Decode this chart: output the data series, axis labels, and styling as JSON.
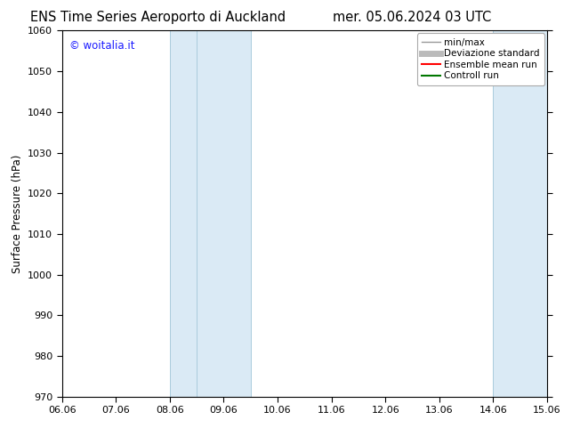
{
  "title_left": "ENS Time Series Aeroporto di Auckland",
  "title_right": "mer. 05.06.2024 03 UTC",
  "ylabel": "Surface Pressure (hPa)",
  "ylim": [
    970,
    1060
  ],
  "yticks": [
    970,
    980,
    990,
    1000,
    1010,
    1020,
    1030,
    1040,
    1050,
    1060
  ],
  "xlim": [
    0.0,
    9.0
  ],
  "xtick_labels": [
    "06.06",
    "07.06",
    "08.06",
    "09.06",
    "10.06",
    "11.06",
    "12.06",
    "13.06",
    "14.06",
    "15.06"
  ],
  "xtick_positions": [
    0.0,
    1.0,
    2.0,
    3.0,
    4.0,
    5.0,
    6.0,
    7.0,
    8.0,
    9.0
  ],
  "shaded_bands": [
    {
      "xmin": 2.0,
      "xmax": 2.5,
      "color": "#daeaf5"
    },
    {
      "xmin": 2.5,
      "xmax": 3.5,
      "color": "#daeaf5"
    },
    {
      "xmin": 8.0,
      "xmax": 9.0,
      "color": "#daeaf5"
    }
  ],
  "band_dividers": [
    2.0,
    2.5,
    3.5,
    8.0,
    9.0
  ],
  "watermark_text": "© woitalia.it",
  "watermark_color": "#1a1aff",
  "legend_entries": [
    {
      "label": "min/max",
      "color": "#999999",
      "lw": 1.0,
      "linestyle": "-"
    },
    {
      "label": "Deviazione standard",
      "color": "#bbbbbb",
      "lw": 5,
      "linestyle": "-"
    },
    {
      "label": "Ensemble mean run",
      "color": "#ff0000",
      "lw": 1.5,
      "linestyle": "-"
    },
    {
      "label": "Controll run",
      "color": "#007700",
      "lw": 1.5,
      "linestyle": "-"
    }
  ],
  "background_color": "#ffffff",
  "title_fontsize": 10.5,
  "axis_label_fontsize": 8.5,
  "tick_fontsize": 8,
  "watermark_fontsize": 8.5
}
